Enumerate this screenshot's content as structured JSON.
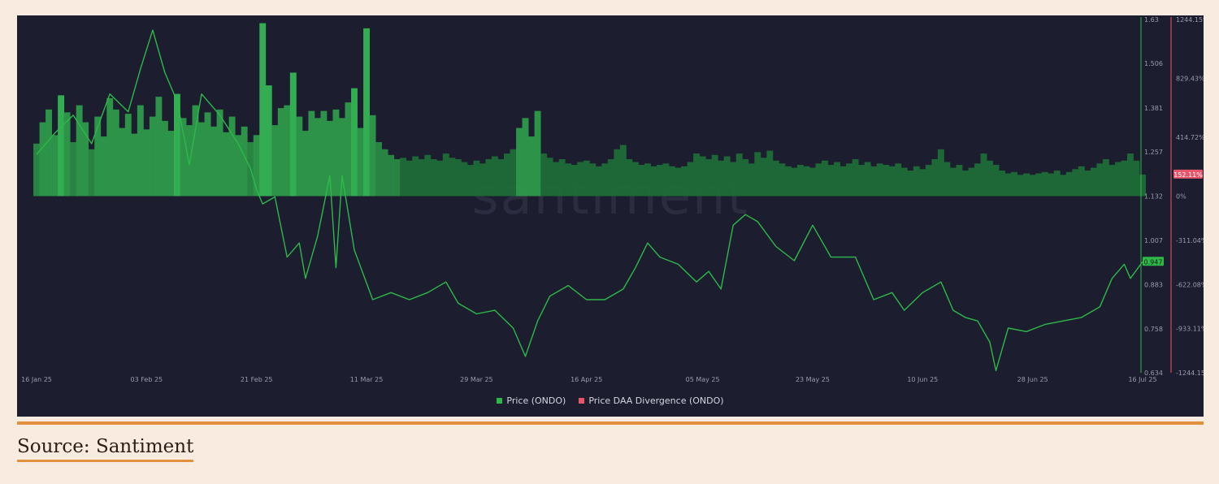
{
  "chart_data": {
    "type": "bar+line",
    "watermark": "santiment",
    "x_ticks": [
      "16 Jan 25",
      "03 Feb 25",
      "21 Feb 25",
      "11 Mar 25",
      "29 Mar 25",
      "16 Apr 25",
      "05 May 25",
      "23 May 25",
      "10 Jun 25",
      "28 Jun 25",
      "16 Jul 25"
    ],
    "price_axis": {
      "ticks": [
        "1.63",
        "1.506",
        "1.381",
        "1.257",
        "1.132",
        "1.007",
        "0.883",
        "0.758",
        "0.634"
      ],
      "ylim": [
        0.634,
        1.63
      ]
    },
    "divergence_axis": {
      "ticks": [
        "1244.15%",
        "829.43%",
        "414.72%",
        "0%",
        "-311.04%",
        "-622.08%",
        "-933.11%",
        "-1244.15%"
      ],
      "ylim": [
        -1244.15,
        1244.15
      ]
    },
    "last_price_label": "0.947",
    "last_divergence_label": "152.11%",
    "series": [
      {
        "name": "Price (ONDO)",
        "color": "#2fb84a",
        "points": [
          [
            "16 Jan 25",
            1.25
          ],
          [
            "19 Jan 25",
            1.31
          ],
          [
            "22 Jan 25",
            1.36
          ],
          [
            "25 Jan 25",
            1.28
          ],
          [
            "28 Jan 25",
            1.42
          ],
          [
            "31 Jan 25",
            1.37
          ],
          [
            "02 Feb 25",
            1.49
          ],
          [
            "04 Feb 25",
            1.6
          ],
          [
            "06 Feb 25",
            1.48
          ],
          [
            "08 Feb 25",
            1.4
          ],
          [
            "10 Feb 25",
            1.22
          ],
          [
            "12 Feb 25",
            1.42
          ],
          [
            "15 Feb 25",
            1.36
          ],
          [
            "18 Feb 25",
            1.28
          ],
          [
            "20 Feb 25",
            1.21
          ],
          [
            "21 Feb 25",
            1.15
          ],
          [
            "22 Feb 25",
            1.11
          ],
          [
            "24 Feb 25",
            1.13
          ],
          [
            "26 Feb 25",
            0.96
          ],
          [
            "28 Feb 25",
            1.0
          ],
          [
            "01 Mar 25",
            0.9
          ],
          [
            "03 Mar 25",
            1.02
          ],
          [
            "05 Mar 25",
            1.19
          ],
          [
            "06 Mar 25",
            0.93
          ],
          [
            "07 Mar 25",
            1.19
          ],
          [
            "09 Mar 25",
            0.98
          ],
          [
            "12 Mar 25",
            0.84
          ],
          [
            "15 Mar 25",
            0.86
          ],
          [
            "18 Mar 25",
            0.84
          ],
          [
            "21 Mar 25",
            0.86
          ],
          [
            "24 Mar 25",
            0.89
          ],
          [
            "26 Mar 25",
            0.83
          ],
          [
            "29 Mar 25",
            0.8
          ],
          [
            "01 Apr 25",
            0.81
          ],
          [
            "04 Apr 25",
            0.76
          ],
          [
            "06 Apr 25",
            0.68
          ],
          [
            "08 Apr 25",
            0.78
          ],
          [
            "10 Apr 25",
            0.85
          ],
          [
            "13 Apr 25",
            0.88
          ],
          [
            "16 Apr 25",
            0.84
          ],
          [
            "19 Apr 25",
            0.84
          ],
          [
            "22 Apr 25",
            0.87
          ],
          [
            "24 Apr 25",
            0.93
          ],
          [
            "26 Apr 25",
            1.0
          ],
          [
            "28 Apr 25",
            0.96
          ],
          [
            "01 May 25",
            0.94
          ],
          [
            "04 May 25",
            0.89
          ],
          [
            "06 May 25",
            0.92
          ],
          [
            "08 May 25",
            0.87
          ],
          [
            "10 May 25",
            1.05
          ],
          [
            "12 May 25",
            1.08
          ],
          [
            "14 May 25",
            1.06
          ],
          [
            "17 May 25",
            0.99
          ],
          [
            "20 May 25",
            0.95
          ],
          [
            "23 May 25",
            1.05
          ],
          [
            "26 May 25",
            0.96
          ],
          [
            "30 May 25",
            0.96
          ],
          [
            "02 Jun 25",
            0.84
          ],
          [
            "05 Jun 25",
            0.86
          ],
          [
            "07 Jun 25",
            0.81
          ],
          [
            "10 Jun 25",
            0.86
          ],
          [
            "13 Jun 25",
            0.89
          ],
          [
            "15 Jun 25",
            0.81
          ],
          [
            "17 Jun 25",
            0.79
          ],
          [
            "19 Jun 25",
            0.78
          ],
          [
            "21 Jun 25",
            0.72
          ],
          [
            "22 Jun 25",
            0.64
          ],
          [
            "24 Jun 25",
            0.76
          ],
          [
            "27 Jun 25",
            0.75
          ],
          [
            "30 Jun 25",
            0.77
          ],
          [
            "03 Jul 25",
            0.78
          ],
          [
            "06 Jul 25",
            0.79
          ],
          [
            "09 Jul 25",
            0.82
          ],
          [
            "11 Jul 25",
            0.9
          ],
          [
            "13 Jul 25",
            0.94
          ],
          [
            "14 Jul 25",
            0.9
          ],
          [
            "16 Jul 25",
            0.947
          ]
        ]
      },
      {
        "name": "Price DAA Divergence (ONDO)",
        "color": "#e8566a",
        "bar_color": "#2d8a45",
        "points": [
          [
            "16 Jan 25",
            370
          ],
          [
            "17 Jan 25",
            520
          ],
          [
            "18 Jan 25",
            610
          ],
          [
            "19 Jan 25",
            430
          ],
          [
            "20 Jan 25",
            710
          ],
          [
            "21 Jan 25",
            590
          ],
          [
            "22 Jan 25",
            380
          ],
          [
            "23 Jan 25",
            640
          ],
          [
            "24 Jan 25",
            520
          ],
          [
            "25 Jan 25",
            330
          ],
          [
            "26 Jan 25",
            560
          ],
          [
            "27 Jan 25",
            420
          ],
          [
            "28 Jan 25",
            690
          ],
          [
            "29 Jan 25",
            610
          ],
          [
            "30 Jan 25",
            480
          ],
          [
            "31 Jan 25",
            580
          ],
          [
            "01 Feb 25",
            440
          ],
          [
            "02 Feb 25",
            640
          ],
          [
            "03 Feb 25",
            470
          ],
          [
            "04 Feb 25",
            560
          ],
          [
            "05 Feb 25",
            700
          ],
          [
            "06 Feb 25",
            530
          ],
          [
            "07 Feb 25",
            460
          ],
          [
            "08 Feb 25",
            720
          ],
          [
            "09 Feb 25",
            550
          ],
          [
            "10 Feb 25",
            500
          ],
          [
            "11 Feb 25",
            640
          ],
          [
            "12 Feb 25",
            520
          ],
          [
            "13 Feb 25",
            590
          ],
          [
            "14 Feb 25",
            490
          ],
          [
            "15 Feb 25",
            610
          ],
          [
            "16 Feb 25",
            450
          ],
          [
            "17 Feb 25",
            560
          ],
          [
            "18 Feb 25",
            430
          ],
          [
            "19 Feb 25",
            490
          ],
          [
            "20 Feb 25",
            380
          ],
          [
            "21 Feb 25",
            430
          ],
          [
            "22 Feb 25",
            1218
          ],
          [
            "23 Feb 25",
            780
          ],
          [
            "24 Feb 25",
            500
          ],
          [
            "25 Feb 25",
            620
          ],
          [
            "26 Feb 25",
            640
          ],
          [
            "27 Feb 25",
            870
          ],
          [
            "28 Feb 25",
            560
          ],
          [
            "01 Mar 25",
            460
          ],
          [
            "02 Mar 25",
            600
          ],
          [
            "03 Mar 25",
            550
          ],
          [
            "04 Mar 25",
            600
          ],
          [
            "05 Mar 25",
            530
          ],
          [
            "06 Mar 25",
            610
          ],
          [
            "07 Mar 25",
            550
          ],
          [
            "08 Mar 25",
            660
          ],
          [
            "09 Mar 25",
            760
          ],
          [
            "10 Mar 25",
            480
          ],
          [
            "11 Mar 25",
            1182
          ],
          [
            "12 Mar 25",
            570
          ],
          [
            "13 Mar 25",
            380
          ],
          [
            "14 Mar 25",
            330
          ],
          [
            "15 Mar 25",
            290
          ],
          [
            "16 Mar 25",
            260
          ],
          [
            "17 Mar 25",
            270
          ],
          [
            "18 Mar 25",
            250
          ],
          [
            "19 Mar 25",
            280
          ],
          [
            "20 Mar 25",
            260
          ],
          [
            "21 Mar 25",
            290
          ],
          [
            "22 Mar 25",
            260
          ],
          [
            "23 Mar 25",
            250
          ],
          [
            "24 Mar 25",
            300
          ],
          [
            "25 Mar 25",
            270
          ],
          [
            "26 Mar 25",
            260
          ],
          [
            "27 Mar 25",
            240
          ],
          [
            "28 Mar 25",
            220
          ],
          [
            "29 Mar 25",
            250
          ],
          [
            "30 Mar 25",
            230
          ],
          [
            "31 Mar 25",
            260
          ],
          [
            "01 Apr 25",
            280
          ],
          [
            "02 Apr 25",
            260
          ],
          [
            "03 Apr 25",
            300
          ],
          [
            "04 Apr 25",
            330
          ],
          [
            "05 Apr 25",
            480
          ],
          [
            "06 Apr 25",
            550
          ],
          [
            "07 Apr 25",
            420
          ],
          [
            "08 Apr 25",
            600
          ],
          [
            "09 Apr 25",
            300
          ],
          [
            "10 Apr 25",
            270
          ],
          [
            "11 Apr 25",
            240
          ],
          [
            "12 Apr 25",
            260
          ],
          [
            "13 Apr 25",
            230
          ],
          [
            "14 Apr 25",
            220
          ],
          [
            "15 Apr 25",
            240
          ],
          [
            "16 Apr 25",
            250
          ],
          [
            "17 Apr 25",
            230
          ],
          [
            "18 Apr 25",
            210
          ],
          [
            "19 Apr 25",
            230
          ],
          [
            "20 Apr 25",
            260
          ],
          [
            "21 Apr 25",
            330
          ],
          [
            "22 Apr 25",
            360
          ],
          [
            "23 Apr 25",
            260
          ],
          [
            "24 Apr 25",
            240
          ],
          [
            "25 Apr 25",
            220
          ],
          [
            "26 Apr 25",
            230
          ],
          [
            "27 Apr 25",
            210
          ],
          [
            "28 Apr 25",
            220
          ],
          [
            "29 Apr 25",
            230
          ],
          [
            "30 Apr 25",
            210
          ],
          [
            "01 May 25",
            200
          ],
          [
            "02 May 25",
            210
          ],
          [
            "03 May 25",
            240
          ],
          [
            "04 May 25",
            300
          ],
          [
            "05 May 25",
            280
          ],
          [
            "06 May 25",
            260
          ],
          [
            "07 May 25",
            290
          ],
          [
            "08 May 25",
            250
          ],
          [
            "09 May 25",
            280
          ],
          [
            "10 May 25",
            240
          ],
          [
            "11 May 25",
            300
          ],
          [
            "12 May 25",
            260
          ],
          [
            "13 May 25",
            230
          ],
          [
            "14 May 25",
            310
          ],
          [
            "15 May 25",
            270
          ],
          [
            "16 May 25",
            320
          ],
          [
            "17 May 25",
            250
          ],
          [
            "18 May 25",
            230
          ],
          [
            "19 May 25",
            210
          ],
          [
            "20 May 25",
            200
          ],
          [
            "21 May 25",
            220
          ],
          [
            "22 May 25",
            210
          ],
          [
            "23 May 25",
            200
          ],
          [
            "24 May 25",
            230
          ],
          [
            "25 May 25",
            250
          ],
          [
            "26 May 25",
            220
          ],
          [
            "27 May 25",
            240
          ],
          [
            "28 May 25",
            210
          ],
          [
            "29 May 25",
            230
          ],
          [
            "30 May 25",
            260
          ],
          [
            "31 May 25",
            220
          ],
          [
            "01 Jun 25",
            240
          ],
          [
            "02 Jun 25",
            210
          ],
          [
            "03 Jun 25",
            230
          ],
          [
            "04 Jun 25",
            220
          ],
          [
            "05 Jun 25",
            210
          ],
          [
            "06 Jun 25",
            230
          ],
          [
            "07 Jun 25",
            200
          ],
          [
            "08 Jun 25",
            180
          ],
          [
            "09 Jun 25",
            210
          ],
          [
            "10 Jun 25",
            190
          ],
          [
            "11 Jun 25",
            220
          ],
          [
            "12 Jun 25",
            260
          ],
          [
            "13 Jun 25",
            330
          ],
          [
            "14 Jun 25",
            240
          ],
          [
            "15 Jun 25",
            200
          ],
          [
            "16 Jun 25",
            220
          ],
          [
            "17 Jun 25",
            180
          ],
          [
            "18 Jun 25",
            200
          ],
          [
            "19 Jun 25",
            230
          ],
          [
            "20 Jun 25",
            300
          ],
          [
            "21 Jun 25",
            250
          ],
          [
            "22 Jun 25",
            220
          ],
          [
            "23 Jun 25",
            180
          ],
          [
            "24 Jun 25",
            160
          ],
          [
            "25 Jun 25",
            170
          ],
          [
            "26 Jun 25",
            150
          ],
          [
            "27 Jun 25",
            160
          ],
          [
            "28 Jun 25",
            150
          ],
          [
            "29 Jun 25",
            160
          ],
          [
            "30 Jun 25",
            170
          ],
          [
            "01 Jul 25",
            160
          ],
          [
            "02 Jul 25",
            180
          ],
          [
            "03 Jul 25",
            150
          ],
          [
            "04 Jul 25",
            170
          ],
          [
            "05 Jul 25",
            190
          ],
          [
            "06 Jul 25",
            210
          ],
          [
            "07 Jul 25",
            180
          ],
          [
            "08 Jul 25",
            200
          ],
          [
            "09 Jul 25",
            230
          ],
          [
            "10 Jul 25",
            260
          ],
          [
            "11 Jul 25",
            220
          ],
          [
            "12 Jul 25",
            240
          ],
          [
            "13 Jul 25",
            250
          ],
          [
            "14 Jul 25",
            300
          ],
          [
            "15 Jul 25",
            250
          ],
          [
            "16 Jul 25",
            152.11
          ]
        ]
      }
    ],
    "legend": [
      "Price (ONDO)",
      "Price DAA Divergence (ONDO)"
    ],
    "legend_placement": "bottom-center",
    "grid": false
  },
  "caption": {
    "source_label": "Source: Santiment"
  }
}
